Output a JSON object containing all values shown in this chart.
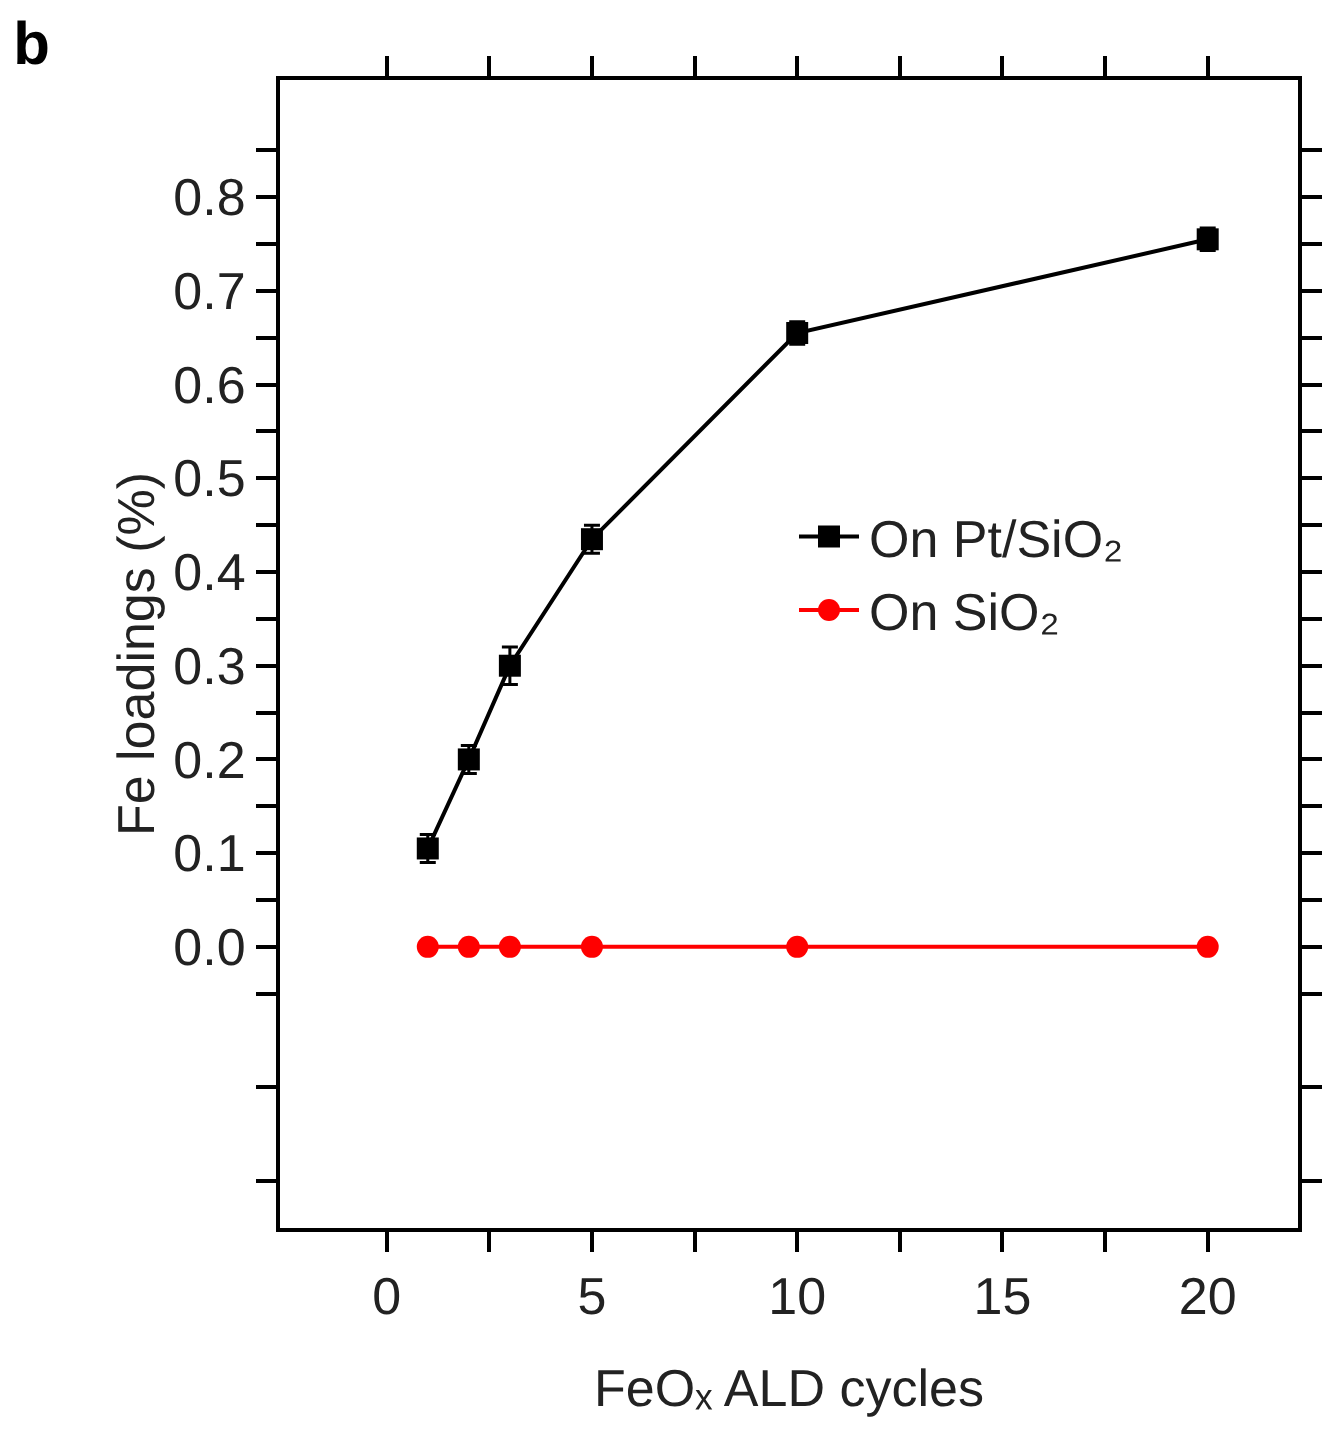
{
  "chart_data": {
    "type": "line",
    "title": "b",
    "xlabel": "FeOₓ ALD cycles",
    "ylabel": "Fe loadings (%)",
    "x": [
      1,
      2,
      3,
      5,
      10,
      20
    ],
    "series": [
      {
        "name": "On Pt/SiO₂",
        "color": "#000000",
        "marker": "square",
        "values": [
          0.105,
          0.2,
          0.3,
          0.435,
          0.655,
          0.755
        ],
        "errors": [
          0.015,
          0.015,
          0.02,
          0.015,
          0.012,
          0.012
        ]
      },
      {
        "name": "On SiO₂",
        "color": "#ff0000",
        "marker": "circle",
        "values": [
          0,
          0,
          0,
          0,
          0,
          0
        ]
      }
    ],
    "xlim": [
      -2.6,
      22.2
    ],
    "xticks": [
      0,
      {
        "value": 2.5,
        "label": null
      },
      5,
      {
        "value": 7.5,
        "label": null
      },
      10,
      {
        "value": 12.5,
        "label": null
      },
      15,
      {
        "value": 17.5,
        "label": null
      },
      20
    ],
    "ylim": [
      -0.3,
      0.925
    ],
    "yticks": [
      {
        "value": -0.25,
        "label": null
      },
      {
        "value": -0.15,
        "label": null
      },
      {
        "value": -0.05,
        "label": null
      },
      {
        "value": 0,
        "label": "0.0"
      },
      {
        "value": 0.05,
        "label": null
      },
      0.1,
      {
        "value": 0.15,
        "label": null
      },
      0.2,
      {
        "value": 0.25,
        "label": null
      },
      0.3,
      {
        "value": 0.35,
        "label": null
      },
      0.4,
      {
        "value": 0.45,
        "label": null
      },
      0.5,
      {
        "value": 0.55,
        "label": null
      },
      0.6,
      {
        "value": 0.65,
        "label": null
      },
      0.7,
      {
        "value": 0.75,
        "label": null
      },
      0.8,
      {
        "value": 0.85,
        "label": null
      }
    ],
    "grid": false,
    "legend": "right",
    "line_style": "solid"
  }
}
